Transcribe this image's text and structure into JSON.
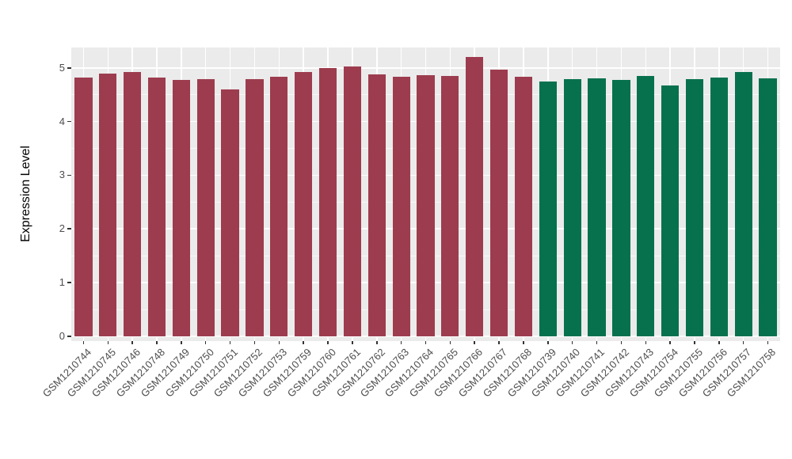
{
  "chart_data": {
    "type": "bar",
    "title": "",
    "xlabel": "",
    "ylabel": "Expression Level",
    "ylim": [
      -0.09,
      5.38
    ],
    "yticks": [
      0,
      1,
      2,
      3,
      4,
      5
    ],
    "yticks_minor": [
      0.5,
      1.5,
      2.5,
      3.5,
      4.5
    ],
    "grid": true,
    "legend_position": "none",
    "panel_background": "#EBEBEB",
    "grid_color": "#FFFFFF",
    "axis_text_color": "#4D4D4D",
    "tick_color": "#333333",
    "categories": [
      "GSM1210744",
      "GSM1210745",
      "GSM1210746",
      "GSM1210748",
      "GSM1210749",
      "GSM1210750",
      "GSM1210751",
      "GSM1210752",
      "GSM1210753",
      "GSM1210759",
      "GSM1210760",
      "GSM1210761",
      "GSM1210762",
      "GSM1210763",
      "GSM1210764",
      "GSM1210765",
      "GSM1210766",
      "GSM1210767",
      "GSM1210768",
      "GSM1210739",
      "GSM1210740",
      "GSM1210741",
      "GSM1210742",
      "GSM1210743",
      "GSM1210754",
      "GSM1210755",
      "GSM1210756",
      "GSM1210757",
      "GSM1210758"
    ],
    "values": [
      4.82,
      4.9,
      4.92,
      4.82,
      4.77,
      4.79,
      4.6,
      4.79,
      4.84,
      4.93,
      4.99,
      5.02,
      4.88,
      4.84,
      4.86,
      4.85,
      5.21,
      4.97,
      4.84,
      4.74,
      4.79,
      4.8,
      4.77,
      4.85,
      4.67,
      4.79,
      4.82,
      4.92,
      4.81
    ],
    "groups": [
      "group1",
      "group1",
      "group1",
      "group1",
      "group1",
      "group1",
      "group1",
      "group1",
      "group1",
      "group1",
      "group1",
      "group1",
      "group1",
      "group1",
      "group1",
      "group1",
      "group1",
      "group1",
      "group1",
      "group2",
      "group2",
      "group2",
      "group2",
      "group2",
      "group2",
      "group2",
      "group2",
      "group2",
      "group2"
    ],
    "group_colors": {
      "group1": "#9D3C4E",
      "group2": "#07714E"
    }
  }
}
